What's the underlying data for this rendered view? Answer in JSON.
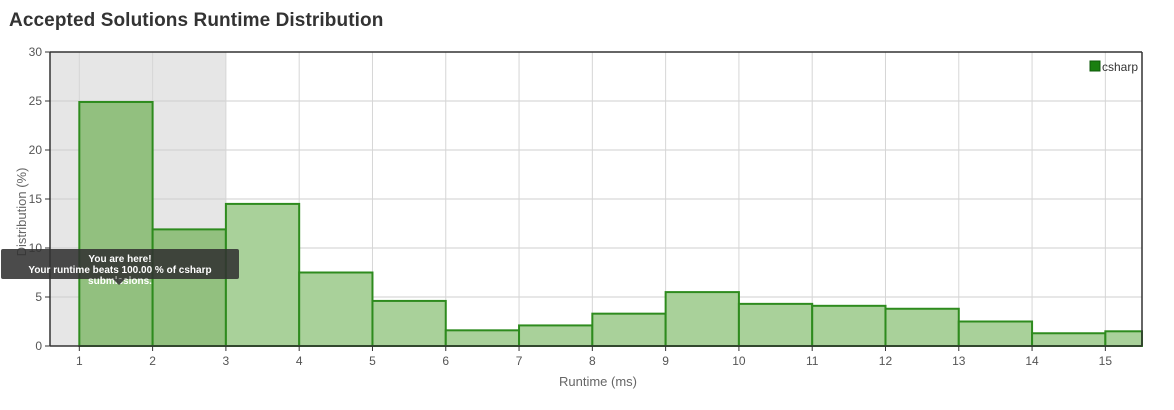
{
  "title": "Accepted Solutions Runtime Distribution",
  "tooltip": {
    "line1": "You are here!",
    "line2": "Your runtime beats 100.00 % of csharp submissions."
  },
  "colors": {
    "bar_fill": "#a9d19a",
    "bar_fill_highlight": "#92c07f",
    "bar_stroke": "#2e8b1e",
    "highlight_band": "#e6e6e6",
    "legend_swatch": "#1a7f10"
  },
  "chart_data": {
    "type": "bar",
    "title": "Accepted Solutions Runtime Distribution",
    "xlabel": "Runtime (ms)",
    "ylabel": "Distribution (%)",
    "xlim": [
      0.6,
      15.5
    ],
    "ylim": [
      0,
      30
    ],
    "xticks": [
      "1",
      "2",
      "3",
      "4",
      "5",
      "6",
      "7",
      "8",
      "9",
      "10",
      "11",
      "12",
      "13",
      "14",
      "15"
    ],
    "yticks": [
      "0",
      "5",
      "10",
      "15",
      "20",
      "25",
      "30"
    ],
    "grid": true,
    "legend_position": "top-right",
    "highlight_range": [
      0.6,
      3
    ],
    "series": [
      {
        "name": "csharp",
        "bins": [
          {
            "start": 1,
            "end": 2,
            "value": 24.9
          },
          {
            "start": 2,
            "end": 3,
            "value": 11.9
          },
          {
            "start": 3,
            "end": 4,
            "value": 14.5
          },
          {
            "start": 4,
            "end": 5,
            "value": 7.5
          },
          {
            "start": 5,
            "end": 6,
            "value": 4.6
          },
          {
            "start": 6,
            "end": 7,
            "value": 1.6
          },
          {
            "start": 7,
            "end": 8,
            "value": 2.1
          },
          {
            "start": 8,
            "end": 9,
            "value": 3.3
          },
          {
            "start": 9,
            "end": 10,
            "value": 5.5
          },
          {
            "start": 10,
            "end": 11,
            "value": 4.3
          },
          {
            "start": 11,
            "end": 12,
            "value": 4.1
          },
          {
            "start": 12,
            "end": 13,
            "value": 3.8
          },
          {
            "start": 13,
            "end": 14,
            "value": 2.5
          },
          {
            "start": 14,
            "end": 15,
            "value": 1.3
          },
          {
            "start": 15,
            "end": 16,
            "value": 1.5
          }
        ]
      }
    ]
  }
}
